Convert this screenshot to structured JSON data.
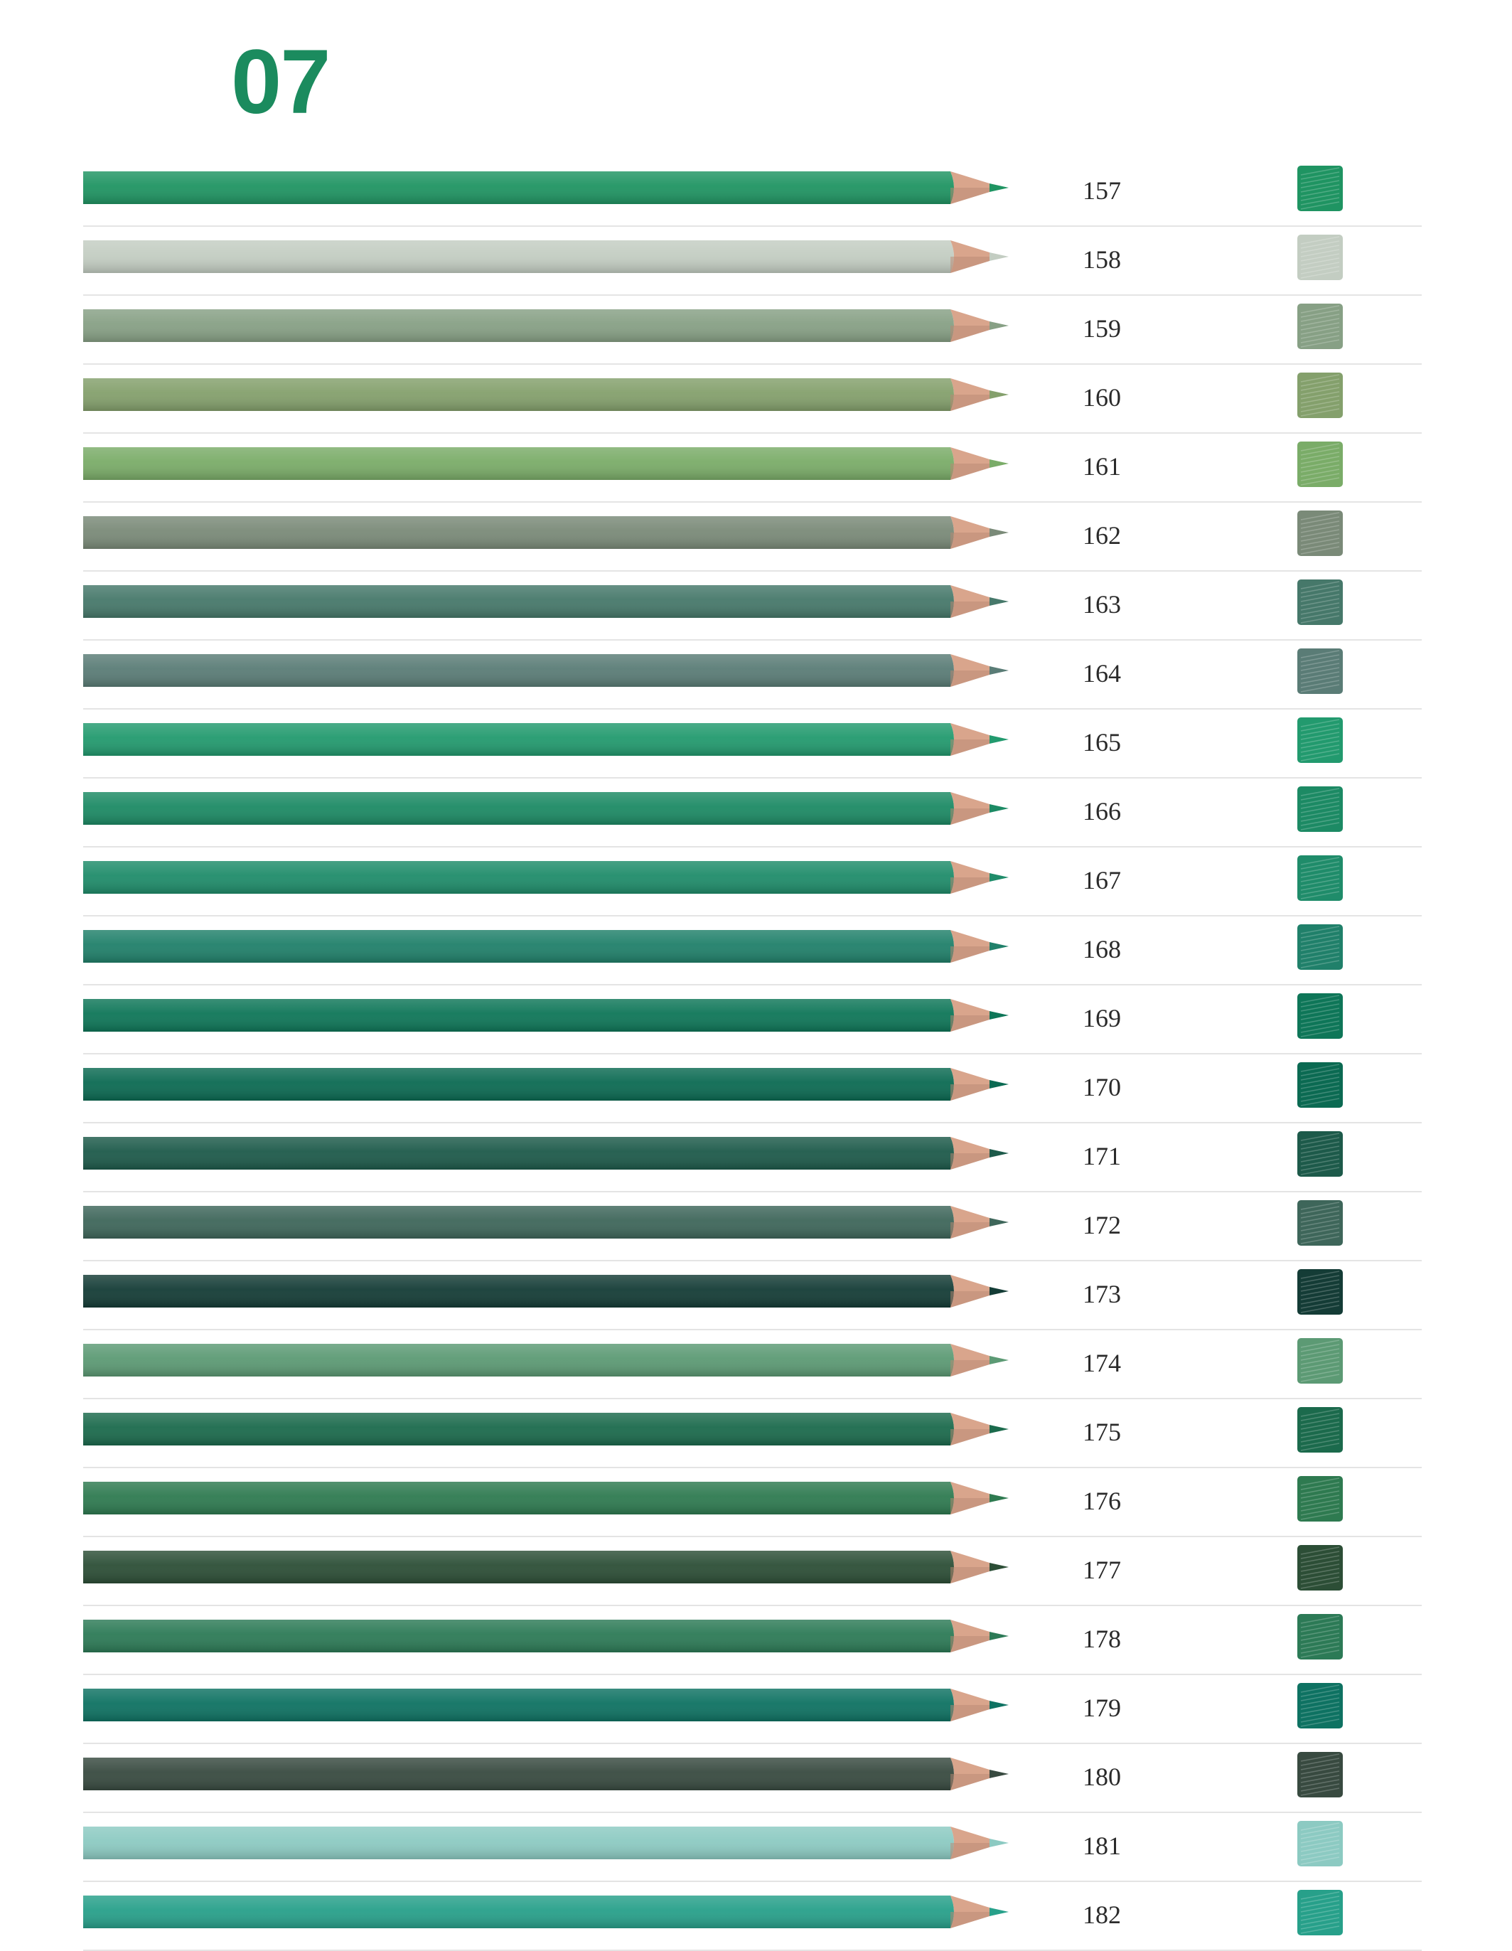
{
  "page": {
    "title": "07"
  },
  "pencils": [
    {
      "code": "157",
      "color": "#1f9462"
    },
    {
      "code": "158",
      "color": "#c3cdc2"
    },
    {
      "code": "159",
      "color": "#87a085"
    },
    {
      "code": "160",
      "color": "#84a06c"
    },
    {
      "code": "161",
      "color": "#7aac68"
    },
    {
      "code": "162",
      "color": "#7a8a78"
    },
    {
      "code": "163",
      "color": "#46786a"
    },
    {
      "code": "164",
      "color": "#5a7c76"
    },
    {
      "code": "165",
      "color": "#229a6e"
    },
    {
      "code": "166",
      "color": "#1c8a64"
    },
    {
      "code": "167",
      "color": "#1f8c6a"
    },
    {
      "code": "168",
      "color": "#20806a"
    },
    {
      "code": "169",
      "color": "#0e7658"
    },
    {
      "code": "170",
      "color": "#0b6a52"
    },
    {
      "code": "171",
      "color": "#1d5a4a"
    },
    {
      "code": "172",
      "color": "#3e665a"
    },
    {
      "code": "173",
      "color": "#143c36"
    },
    {
      "code": "174",
      "color": "#5c9a74"
    },
    {
      "code": "175",
      "color": "#1b6a4c"
    },
    {
      "code": "176",
      "color": "#2e7a50"
    },
    {
      "code": "177",
      "color": "#2c4e36"
    },
    {
      "code": "178",
      "color": "#2c7a56"
    },
    {
      "code": "179",
      "color": "#0e7262"
    },
    {
      "code": "180",
      "color": "#384a40"
    },
    {
      "code": "181",
      "color": "#8ccac2"
    },
    {
      "code": "182",
      "color": "#27a08a"
    }
  ]
}
